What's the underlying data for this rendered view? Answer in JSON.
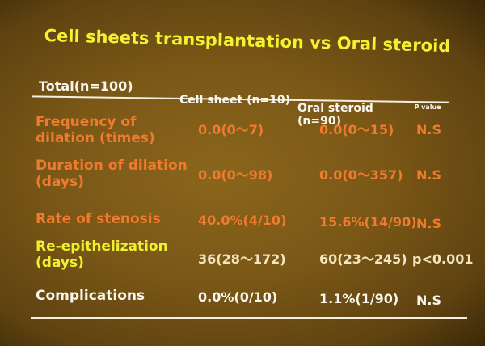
{
  "title": "Cell sheets transplantation vs Oral steroid",
  "table": {
    "header": [
      "Total(n=100)",
      "Cell sheet (n=10)",
      "Oral steroid (n=90)",
      "P value"
    ],
    "rows": [
      [
        "Frequency of dilation (times)",
        "0.0(0〜7)",
        "0.0(0〜15)",
        "N.S"
      ],
      [
        "Duration of dilation (days)",
        "0.0(0〜98)",
        "0.0(0〜357)",
        "N.S"
      ],
      [
        "Rate of stenosis",
        "40.0%(4/10)",
        "15.6%(14/90)",
        "N.S"
      ],
      [
        "Re-epithelization (days)",
        "36(28〜172)",
        "60(23〜245)",
        "p<0.001"
      ],
      [
        "Complications",
        "0.0%(0/10)",
        "1.1%(1/90)",
        "N.S"
      ]
    ]
  }
}
